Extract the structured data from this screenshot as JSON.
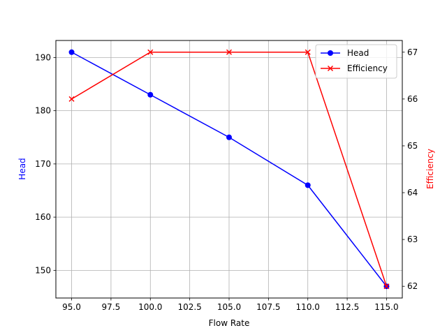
{
  "chart_data": {
    "type": "line",
    "xlabel": "Flow Rate",
    "ylabel_left": "Head",
    "ylabel_right": "Efficiency",
    "x": [
      95,
      100,
      105,
      110,
      115
    ],
    "xlim": [
      94.0,
      116.0
    ],
    "x_ticks": [
      "95.0",
      "97.5",
      "100.0",
      "102.5",
      "105.0",
      "107.5",
      "110.0",
      "112.5",
      "115.0"
    ],
    "x_tick_values": [
      95,
      97.5,
      100,
      102.5,
      105,
      107.5,
      110,
      112.5,
      115
    ],
    "ylim_left": [
      144.8,
      193.2
    ],
    "y_ticks_left": [
      "150",
      "160",
      "170",
      "180",
      "190"
    ],
    "y_tick_values_left": [
      150,
      160,
      170,
      180,
      190
    ],
    "ylim_right": [
      61.75,
      67.25
    ],
    "y_ticks_right": [
      "62",
      "63",
      "64",
      "65",
      "66",
      "67"
    ],
    "y_tick_values_right": [
      62,
      63,
      64,
      65,
      66,
      67
    ],
    "grid": true,
    "legend_position": "top-right",
    "series": [
      {
        "name": "Head",
        "axis": "left",
        "color": "#0000ff",
        "marker": "circle",
        "values": [
          191,
          183,
          175,
          166,
          147
        ]
      },
      {
        "name": "Efficiency",
        "axis": "right",
        "color": "#ff0000",
        "marker": "x",
        "values": [
          66,
          67,
          67,
          67,
          62
        ]
      }
    ]
  }
}
